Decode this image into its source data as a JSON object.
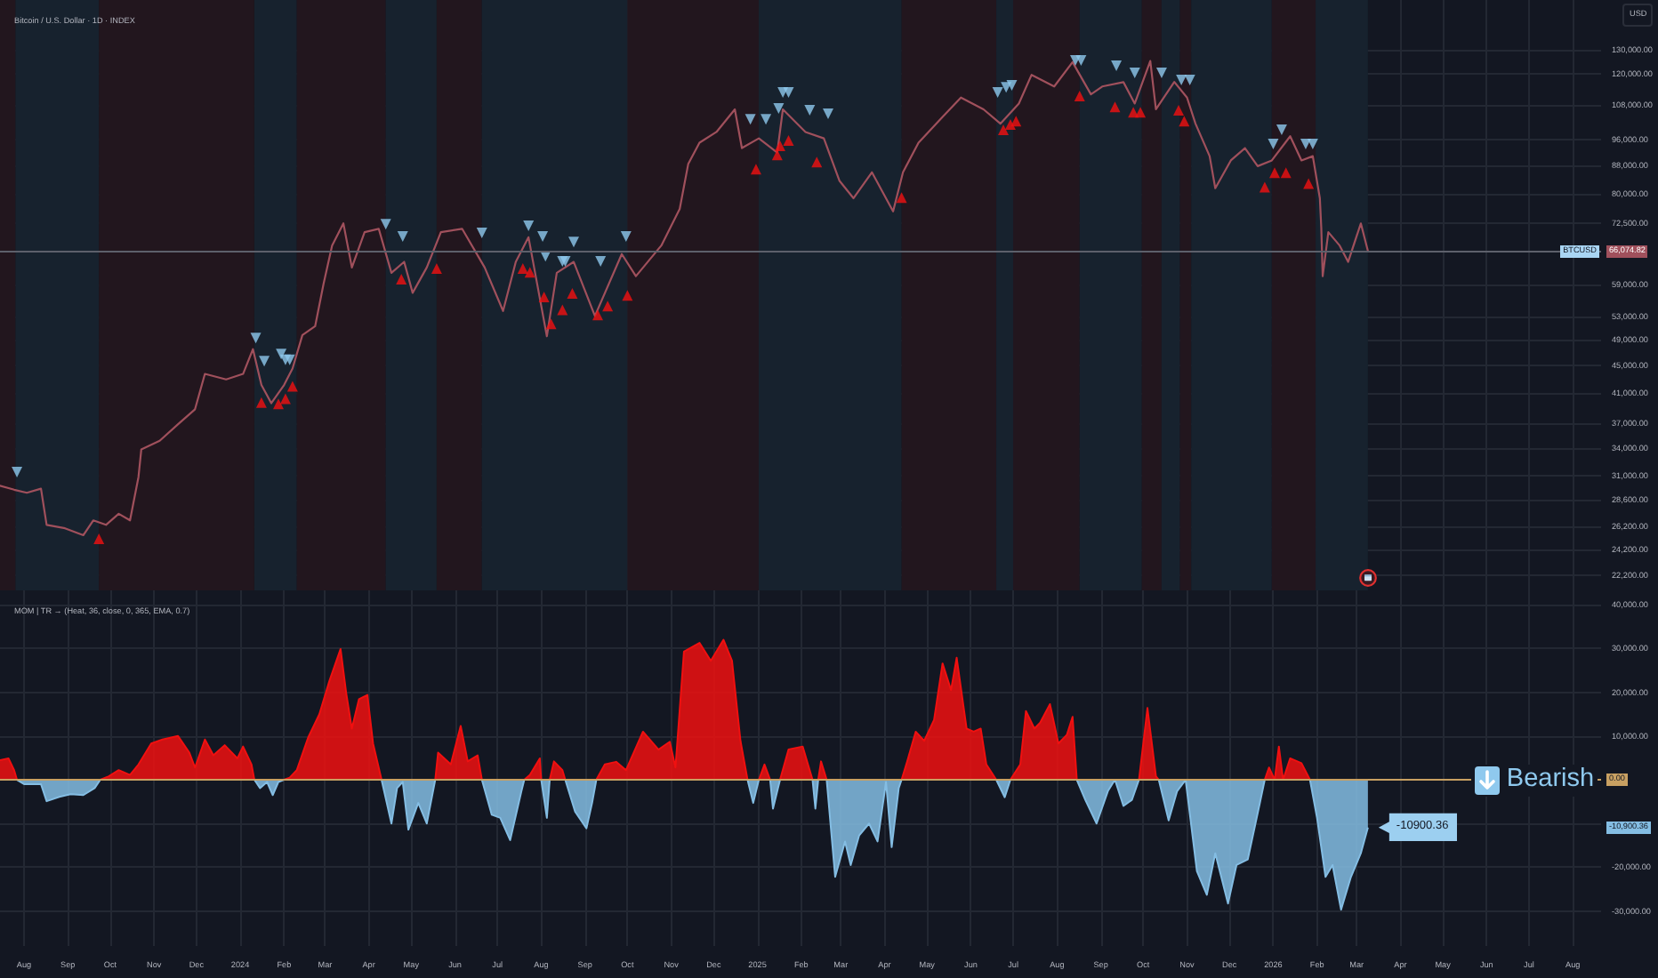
{
  "chart_data": [
    {
      "type": "line",
      "title": "Bitcoin / U.S. Dollar · 1D · INDEX",
      "ylabel": "USD",
      "log": true,
      "grid": true,
      "tick_labels": "y",
      "xlim": [
        "2023-07-15",
        "2026-08-21"
      ],
      "xticks": [
        {
          "value": "2023-08-01",
          "label": null
        },
        {
          "value": "2023-09-01",
          "label": null
        },
        {
          "value": "2023-10-01",
          "label": null
        },
        {
          "value": "2023-11-01",
          "label": null
        },
        {
          "value": "2023-12-01",
          "label": null
        },
        {
          "value": "2024-01-01",
          "label": null
        },
        {
          "value": "2024-02-01",
          "label": null
        },
        {
          "value": "2024-03-01",
          "label": null
        },
        {
          "value": "2024-04-01",
          "label": null
        },
        {
          "value": "2024-05-01",
          "label": null
        },
        {
          "value": "2024-06-01",
          "label": null
        },
        {
          "value": "2024-07-01",
          "label": null
        },
        {
          "value": "2024-08-01",
          "label": null
        },
        {
          "value": "2024-09-01",
          "label": null
        },
        {
          "value": "2024-10-01",
          "label": null
        },
        {
          "value": "2024-11-01",
          "label": null
        },
        {
          "value": "2024-12-01",
          "label": null
        },
        {
          "value": "2025-01-01",
          "label": null
        },
        {
          "value": "2025-02-01",
          "label": null
        },
        {
          "value": "2025-03-01",
          "label": null
        },
        {
          "value": "2025-04-01",
          "label": null
        },
        {
          "value": "2025-05-01",
          "label": null
        },
        {
          "value": "2025-06-01",
          "label": null
        },
        {
          "value": "2025-07-01",
          "label": null
        },
        {
          "value": "2025-08-01",
          "label": null
        },
        {
          "value": "2025-09-01",
          "label": null
        },
        {
          "value": "2025-10-01",
          "label": null
        },
        {
          "value": "2025-11-01",
          "label": null
        },
        {
          "value": "2025-12-01",
          "label": null
        },
        {
          "value": "2026-01-01",
          "label": null
        },
        {
          "value": "2026-02-01",
          "label": null
        },
        {
          "value": "2026-03-01",
          "label": null
        },
        {
          "value": "2026-04-01",
          "label": null
        },
        {
          "value": "2026-05-01",
          "label": null
        },
        {
          "value": "2026-06-01",
          "label": null
        },
        {
          "value": "2026-07-01",
          "label": null
        },
        {
          "value": "2026-08-01",
          "label": null
        }
      ],
      "ylim": [
        21100,
        153700
      ],
      "yticks": [
        {
          "value": 22200,
          "label": "22,200.00"
        },
        {
          "value": 24200,
          "label": "24,200.00"
        },
        {
          "value": 26200,
          "label": "26,200.00"
        },
        {
          "value": 28600,
          "label": "28,600.00"
        },
        {
          "value": 31000,
          "label": "31,000.00"
        },
        {
          "value": 34000,
          "label": "34,000.00"
        },
        {
          "value": 37000,
          "label": "37,000.00"
        },
        {
          "value": 41000,
          "label": "41,000.00"
        },
        {
          "value": 45000,
          "label": "45,000.00"
        },
        {
          "value": 49000,
          "label": "49,000.00"
        },
        {
          "value": 53000,
          "label": "53,000.00"
        },
        {
          "value": 59000,
          "label": "59,000.00"
        },
        {
          "value": 72500,
          "label": "72,500.00"
        },
        {
          "value": 80000,
          "label": "80,000.00"
        },
        {
          "value": 88000,
          "label": "88,000.00"
        },
        {
          "value": 96000,
          "label": "96,000.00"
        },
        {
          "value": 108000,
          "label": "108,000.00"
        },
        {
          "value": 120000,
          "label": "120,000.00"
        },
        {
          "value": 130000,
          "label": "130,000.00"
        }
      ],
      "x": [
        "2023-07-15",
        "2023-07-25",
        "2023-08-03",
        "2023-08-13",
        "2023-08-17",
        "2023-08-30",
        "2023-09-12",
        "2023-09-19",
        "2023-09-28",
        "2023-10-07",
        "2023-10-15",
        "2023-10-21",
        "2023-10-23",
        "2023-11-05",
        "2023-11-18",
        "2023-11-30",
        "2023-12-07",
        "2023-12-22",
        "2024-01-03",
        "2024-01-10",
        "2024-01-16",
        "2024-01-23",
        "2024-02-01",
        "2024-02-07",
        "2024-02-14",
        "2024-02-23",
        "2024-02-29",
        "2024-03-06",
        "2024-03-14",
        "2024-03-20",
        "2024-03-29",
        "2024-04-08",
        "2024-04-17",
        "2024-04-26",
        "2024-05-02",
        "2024-05-12",
        "2024-05-22",
        "2024-06-06",
        "2024-06-22",
        "2024-07-05",
        "2024-07-14",
        "2024-07-23",
        "2024-08-05",
        "2024-08-12",
        "2024-08-24",
        "2024-09-08",
        "2024-09-27",
        "2024-10-07",
        "2024-10-25",
        "2024-11-07",
        "2024-11-13",
        "2024-11-21",
        "2024-12-03",
        "2024-12-16",
        "2024-12-21",
        "2025-01-02",
        "2025-01-15",
        "2025-01-19",
        "2025-02-04",
        "2025-02-17",
        "2025-02-28",
        "2025-03-10",
        "2025-03-23",
        "2025-04-07",
        "2025-04-14",
        "2025-04-25",
        "2025-05-12",
        "2025-05-25",
        "2025-06-10",
        "2025-06-22",
        "2025-07-05",
        "2025-07-14",
        "2025-07-30",
        "2025-08-12",
        "2025-08-25",
        "2025-09-02",
        "2025-09-17",
        "2025-09-25",
        "2025-10-06",
        "2025-10-10",
        "2025-10-23",
        "2025-11-01",
        "2025-11-07",
        "2025-11-17",
        "2025-11-21",
        "2025-12-02",
        "2025-12-12",
        "2025-12-21",
        "2025-12-31",
        "2026-01-13",
        "2026-01-21",
        "2026-01-29",
        "2026-02-03",
        "2026-02-04",
        "2026-02-05",
        "2026-02-09",
        "2026-02-17",
        "2026-02-23",
        "2026-03-04",
        "2026-03-09"
      ],
      "series": [
        {
          "name": "BTCUSD",
          "color": "#a0505c",
          "marker": "none",
          "values": [
            30000,
            29600,
            29300,
            29700,
            26300,
            26000,
            25400,
            26700,
            26300,
            27300,
            26700,
            30900,
            33900,
            34900,
            36900,
            38800,
            43700,
            42900,
            43700,
            47500,
            42100,
            39600,
            42100,
            44500,
            49800,
            51300,
            59200,
            67300,
            72500,
            62500,
            70400,
            71200,
            61400,
            63700,
            57400,
            62500,
            70400,
            71200,
            62500,
            54000,
            63700,
            69200,
            49600,
            61400,
            63700,
            53100,
            65400,
            60700,
            67300,
            76100,
            88500,
            95100,
            98600,
            106400,
            93400,
            96500,
            92000,
            106400,
            98600,
            96500,
            83700,
            78900,
            86100,
            75500,
            86100,
            95100,
            103700,
            110700,
            106400,
            101400,
            108500,
            119500,
            114900,
            124700,
            111900,
            114900,
            116600,
            108500,
            125200,
            106400,
            116700,
            110700,
            101400,
            90900,
            81600,
            89600,
            93400,
            87900,
            89600,
            97200,
            89600,
            90900,
            78900,
            71500,
            60700,
            70400,
            67300,
            63700,
            72500,
            66074.82
          ]
        },
        {
          "type": "scatter",
          "color": "#8fc9ee",
          "marker": "triangle-down",
          "x": [
            "2023-07-27",
            "2024-01-12",
            "2024-01-18",
            "2024-01-30",
            "2024-02-02",
            "2024-02-05",
            "2024-04-13",
            "2024-04-25",
            "2024-06-20",
            "2024-07-23",
            "2024-08-02",
            "2024-08-04",
            "2024-08-16",
            "2024-08-18",
            "2024-08-24",
            "2024-09-12",
            "2024-09-30",
            "2024-12-27",
            "2025-01-07",
            "2025-01-16",
            "2025-01-19",
            "2025-01-23",
            "2025-02-07",
            "2025-02-20",
            "2025-06-20",
            "2025-06-26",
            "2025-06-30",
            "2025-08-14",
            "2025-08-18",
            "2025-09-12",
            "2025-09-25",
            "2025-10-14",
            "2025-10-28",
            "2025-11-03",
            "2026-01-01",
            "2026-01-07",
            "2026-01-24",
            "2026-01-29"
          ],
          "values": [
            31400,
            49300,
            45600,
            46700,
            45800,
            45800,
            72300,
            69400,
            70200,
            71900,
            69400,
            64900,
            63800,
            63800,
            68100,
            63800,
            69400,
            102900,
            102900,
            106700,
            112600,
            112600,
            106100,
            104800,
            112600,
            114600,
            115300,
            125400,
            125400,
            123200,
            120300,
            120300,
            117400,
            117400,
            94700,
            99300,
            94700,
            94700
          ]
        },
        {
          "type": "scatter",
          "color": "#f21010",
          "marker": "triangle",
          "x": [
            "2023-09-23",
            "2024-01-16",
            "2024-01-28",
            "2024-02-02",
            "2024-02-07",
            "2024-04-24",
            "2024-05-19",
            "2024-07-19",
            "2024-07-24",
            "2024-08-03",
            "2024-08-08",
            "2024-08-16",
            "2024-08-23",
            "2024-09-10",
            "2024-09-17",
            "2024-10-01",
            "2024-12-31",
            "2025-01-15",
            "2025-01-17",
            "2025-01-23",
            "2025-02-12",
            "2025-04-13",
            "2025-06-24",
            "2025-06-29",
            "2025-07-03",
            "2025-08-17",
            "2025-09-11",
            "2025-09-24",
            "2025-09-29",
            "2025-10-26",
            "2025-10-30",
            "2025-12-26",
            "2026-01-02",
            "2026-01-10",
            "2026-01-26"
          ],
          "values": [
            25100,
            39700,
            39500,
            40200,
            41900,
            60100,
            62300,
            62300,
            61500,
            56600,
            51700,
            54200,
            57300,
            53300,
            54900,
            56900,
            87000,
            91300,
            94100,
            95800,
            89100,
            79100,
            99300,
            101100,
            102300,
            111300,
            107300,
            105400,
            105400,
            106100,
            102300,
            81900,
            86000,
            86000,
            82900
          ]
        }
      ],
      "ref_lines": [
        {
          "axis": "y",
          "value": 66074.82
        }
      ],
      "bands": [
        {
          "axis": "x",
          "from": "2023-07-15",
          "to": "2023-07-26",
          "color": "#22161e"
        },
        {
          "axis": "x",
          "from": "2023-07-26",
          "to": "2023-09-23",
          "color": "#17222e"
        },
        {
          "axis": "x",
          "from": "2023-09-23",
          "to": "2024-01-11",
          "color": "#22161e"
        },
        {
          "axis": "x",
          "from": "2024-01-11",
          "to": "2024-02-10",
          "color": "#17222e"
        },
        {
          "axis": "x",
          "from": "2024-02-10",
          "to": "2024-04-13",
          "color": "#22161e"
        },
        {
          "axis": "x",
          "from": "2024-04-13",
          "to": "2024-05-19",
          "color": "#17222e"
        },
        {
          "axis": "x",
          "from": "2024-05-19",
          "to": "2024-06-20",
          "color": "#22161e"
        },
        {
          "axis": "x",
          "from": "2024-06-20",
          "to": "2024-10-01",
          "color": "#17222e"
        },
        {
          "axis": "x",
          "from": "2024-10-01",
          "to": "2025-01-02",
          "color": "#22161e"
        },
        {
          "axis": "x",
          "from": "2025-01-02",
          "to": "2025-04-13",
          "color": "#17222e"
        },
        {
          "axis": "x",
          "from": "2025-04-13",
          "to": "2025-06-19",
          "color": "#22161e"
        },
        {
          "axis": "x",
          "from": "2025-06-19",
          "to": "2025-07-01",
          "color": "#17222e"
        },
        {
          "axis": "x",
          "from": "2025-07-01",
          "to": "2025-08-17",
          "color": "#22161e"
        },
        {
          "axis": "x",
          "from": "2025-08-17",
          "to": "2025-09-30",
          "color": "#17222e"
        },
        {
          "axis": "x",
          "from": "2025-09-30",
          "to": "2025-10-14",
          "color": "#22161e"
        },
        {
          "axis": "x",
          "from": "2025-10-14",
          "to": "2025-10-27",
          "color": "#17222e"
        },
        {
          "axis": "x",
          "from": "2025-10-27",
          "to": "2025-11-04",
          "color": "#22161e"
        },
        {
          "axis": "x",
          "from": "2025-11-04",
          "to": "2025-12-31",
          "color": "#17222e"
        },
        {
          "axis": "x",
          "from": "2025-12-31",
          "to": "2026-01-31",
          "color": "#22161e"
        },
        {
          "axis": "x",
          "from": "2026-01-31",
          "to": "2026-03-09",
          "color": "#17222e"
        }
      ],
      "annotations": [
        "66,074.82"
      ]
    },
    {
      "type": "area",
      "title": "MOM | TR → (Heat, 36, close, 0, 365, EMA, 0.7)",
      "grid": true,
      "xlim": [
        "2023-07-15",
        "2026-08-21"
      ],
      "xticks": [
        {
          "value": "2023-08-01",
          "label": "Aug"
        },
        {
          "value": "2023-09-01",
          "label": "Sep"
        },
        {
          "value": "2023-10-01",
          "label": "Oct"
        },
        {
          "value": "2023-11-01",
          "label": "Nov"
        },
        {
          "value": "2023-12-01",
          "label": "Dec"
        },
        {
          "value": "2024-01-01",
          "label": "2024"
        },
        {
          "value": "2024-02-01",
          "label": "Feb"
        },
        {
          "value": "2024-03-01",
          "label": "Mar"
        },
        {
          "value": "2024-04-01",
          "label": "Apr"
        },
        {
          "value": "2024-05-01",
          "label": "May"
        },
        {
          "value": "2024-06-01",
          "label": "Jun"
        },
        {
          "value": "2024-07-01",
          "label": "Jul"
        },
        {
          "value": "2024-08-01",
          "label": "Aug"
        },
        {
          "value": "2024-09-01",
          "label": "Sep"
        },
        {
          "value": "2024-10-01",
          "label": "Oct"
        },
        {
          "value": "2024-11-01",
          "label": "Nov"
        },
        {
          "value": "2024-12-01",
          "label": "Dec"
        },
        {
          "value": "2025-01-01",
          "label": "2025"
        },
        {
          "value": "2025-02-01",
          "label": "Feb"
        },
        {
          "value": "2025-03-01",
          "label": "Mar"
        },
        {
          "value": "2025-04-01",
          "label": "Apr"
        },
        {
          "value": "2025-05-01",
          "label": "May"
        },
        {
          "value": "2025-06-01",
          "label": "Jun"
        },
        {
          "value": "2025-07-01",
          "label": "Jul"
        },
        {
          "value": "2025-08-01",
          "label": "Aug"
        },
        {
          "value": "2025-09-01",
          "label": "Sep"
        },
        {
          "value": "2025-10-01",
          "label": "Oct"
        },
        {
          "value": "2025-11-01",
          "label": "Nov"
        },
        {
          "value": "2025-12-01",
          "label": "Dec"
        },
        {
          "value": "2026-01-01",
          "label": "2026"
        },
        {
          "value": "2026-02-01",
          "label": "Feb"
        },
        {
          "value": "2026-03-01",
          "label": "Mar"
        },
        {
          "value": "2026-04-01",
          "label": "Apr"
        },
        {
          "value": "2026-05-01",
          "label": "May"
        },
        {
          "value": "2026-06-01",
          "label": "Jun"
        },
        {
          "value": "2026-07-01",
          "label": "Jul"
        },
        {
          "value": "2026-08-01",
          "label": "Aug"
        }
      ],
      "ylim": [
        -38000,
        43300
      ],
      "yticks": [
        {
          "value": 40000,
          "label": "40,000.00"
        },
        {
          "value": 30000,
          "label": "30,000.00"
        },
        {
          "value": 20000,
          "label": "20,000.00"
        },
        {
          "value": 10000,
          "label": "10,000.00"
        },
        {
          "value": 0,
          "label": null
        },
        {
          "value": -10000,
          "label": null
        },
        {
          "value": -20000,
          "label": "-20,000.00"
        },
        {
          "value": -30000,
          "label": "-30,000.00"
        }
      ],
      "x": [
        "2023-07-15",
        "2023-07-21",
        "2023-07-25",
        "2023-07-27",
        "2023-08-01",
        "2023-08-13",
        "2023-08-17",
        "2023-08-26",
        "2023-09-03",
        "2023-09-12",
        "2023-09-20",
        "2023-09-24",
        "2023-09-30",
        "2023-10-07",
        "2023-10-15",
        "2023-10-21",
        "2023-10-30",
        "2023-11-07",
        "2023-11-18",
        "2023-11-26",
        "2023-11-30",
        "2023-12-07",
        "2023-12-13",
        "2023-12-21",
        "2023-12-30",
        "2024-01-03",
        "2024-01-09",
        "2024-01-11",
        "2024-01-15",
        "2024-01-20",
        "2024-01-24",
        "2024-01-28",
        "2024-02-01",
        "2024-02-05",
        "2024-02-10",
        "2024-02-18",
        "2024-02-26",
        "2024-03-04",
        "2024-03-12",
        "2024-03-16",
        "2024-03-20",
        "2024-03-25",
        "2024-03-31",
        "2024-04-04",
        "2024-04-10",
        "2024-04-17",
        "2024-04-21",
        "2024-04-25",
        "2024-04-29",
        "2024-05-06",
        "2024-05-12",
        "2024-05-18",
        "2024-05-20",
        "2024-05-29",
        "2024-06-05",
        "2024-06-10",
        "2024-06-17",
        "2024-06-20",
        "2024-06-27",
        "2024-07-03",
        "2024-07-10",
        "2024-07-18",
        "2024-07-20",
        "2024-07-24",
        "2024-07-31",
        "2024-08-01",
        "2024-08-05",
        "2024-08-07",
        "2024-08-10",
        "2024-08-16",
        "2024-08-18",
        "2024-08-25",
        "2024-09-02",
        "2024-09-06",
        "2024-09-09",
        "2024-09-15",
        "2024-09-23",
        "2024-09-30",
        "2024-10-12",
        "2024-10-23",
        "2024-10-31",
        "2024-11-04",
        "2024-11-10",
        "2024-11-21",
        "2024-11-29",
        "2024-12-08",
        "2024-12-14",
        "2024-12-20",
        "2024-12-25",
        "2024-12-29",
        "2025-01-02",
        "2025-01-06",
        "2025-01-10",
        "2025-01-12",
        "2025-01-17",
        "2025-01-23",
        "2025-02-02",
        "2025-02-09",
        "2025-02-11",
        "2025-02-13",
        "2025-02-15",
        "2025-02-19",
        "2025-02-25",
        "2025-03-04",
        "2025-03-08",
        "2025-03-14",
        "2025-03-21",
        "2025-03-27",
        "2025-04-02",
        "2025-04-06",
        "2025-04-11",
        "2025-04-13",
        "2025-04-17",
        "2025-04-23",
        "2025-04-29",
        "2025-05-06",
        "2025-05-12",
        "2025-05-18",
        "2025-05-22",
        "2025-05-29",
        "2025-06-03",
        "2025-06-08",
        "2025-06-12",
        "2025-06-19",
        "2025-06-25",
        "2025-06-29",
        "2025-07-06",
        "2025-07-10",
        "2025-07-16",
        "2025-07-20",
        "2025-07-27",
        "2025-08-02",
        "2025-08-08",
        "2025-08-12",
        "2025-08-15",
        "2025-08-21",
        "2025-08-29",
        "2025-09-06",
        "2025-09-11",
        "2025-09-17",
        "2025-09-23",
        "2025-09-28",
        "2025-10-04",
        "2025-10-10",
        "2025-10-12",
        "2025-10-19",
        "2025-10-25",
        "2025-10-31",
        "2025-11-08",
        "2025-11-15",
        "2025-11-21",
        "2025-11-30",
        "2025-12-06",
        "2025-12-14",
        "2025-12-23",
        "2025-12-26",
        "2025-12-29",
        "2026-01-02",
        "2026-01-05",
        "2026-01-08",
        "2026-01-13",
        "2026-01-21",
        "2026-01-27",
        "2026-02-01",
        "2026-02-07",
        "2026-02-12",
        "2026-02-18",
        "2026-02-25",
        "2026-03-04",
        "2026-03-09"
      ],
      "series": [
        {
          "color": "#f01010",
          "values": [
            4500,
            4900,
            2200,
            0,
            null,
            null,
            null,
            null,
            null,
            null,
            null,
            0,
            800,
            2200,
            1100,
            3500,
            8300,
            9200,
            10000,
            6200,
            2800,
            9200,
            5600,
            7900,
            4900,
            7600,
            3500,
            0,
            null,
            null,
            null,
            null,
            0,
            500,
            2200,
            9600,
            15000,
            22500,
            29900,
            19800,
            11700,
            18400,
            19400,
            8300,
            0,
            null,
            null,
            null,
            null,
            null,
            null,
            0,
            6200,
            3500,
            12300,
            4200,
            5600,
            0,
            null,
            null,
            null,
            null,
            0,
            1100,
            4900,
            0,
            null,
            0,
            4200,
            2200,
            0,
            null,
            null,
            null,
            0,
            3500,
            4100,
            2200,
            11000,
            6900,
            8700,
            2800,
            29300,
            31300,
            27200,
            32000,
            27200,
            8900,
            0,
            null,
            0,
            3500,
            0,
            null,
            0,
            6900,
            7600,
            0,
            null,
            0,
            4200,
            0,
            null,
            null,
            null,
            null,
            null,
            null,
            null,
            null,
            null,
            0,
            4200,
            11000,
            8900,
            13700,
            26600,
            20500,
            27900,
            11700,
            11000,
            11700,
            3500,
            0,
            null,
            0,
            3500,
            15700,
            11700,
            13000,
            17300,
            8300,
            10300,
            14400,
            0,
            null,
            null,
            null,
            null,
            null,
            null,
            0,
            16400,
            800,
            0,
            null,
            null,
            null,
            null,
            null,
            null,
            null,
            null,
            null,
            null,
            0,
            2800,
            0,
            7600,
            0,
            4900,
            3800,
            0,
            null,
            null,
            null,
            null,
            null,
            null,
            null
          ]
        },
        {
          "color": "#84bde3",
          "values": [
            null,
            null,
            null,
            0,
            -1000,
            -1000,
            -4900,
            -3900,
            -3300,
            -3500,
            -1900,
            0,
            null,
            null,
            null,
            null,
            null,
            null,
            null,
            null,
            null,
            null,
            null,
            null,
            null,
            null,
            null,
            0,
            -1900,
            -500,
            -3500,
            -500,
            0,
            null,
            null,
            null,
            null,
            null,
            null,
            null,
            null,
            null,
            null,
            null,
            0,
            -10000,
            -1900,
            -500,
            -11400,
            -5300,
            -10000,
            0,
            null,
            null,
            null,
            null,
            null,
            0,
            -8000,
            -8700,
            -13800,
            -2600,
            0,
            null,
            null,
            0,
            -8700,
            0,
            null,
            null,
            0,
            -7300,
            -11100,
            -5300,
            0,
            null,
            null,
            null,
            null,
            null,
            null,
            null,
            null,
            null,
            null,
            null,
            null,
            null,
            0,
            -5300,
            0,
            null,
            0,
            -6600,
            0,
            null,
            null,
            0,
            -6600,
            0,
            null,
            0,
            -22200,
            -14100,
            -19500,
            -12700,
            -10000,
            -14100,
            -500,
            -15400,
            -1900,
            0,
            null,
            null,
            null,
            null,
            null,
            null,
            null,
            null,
            null,
            null,
            null,
            0,
            -4000,
            0,
            null,
            null,
            null,
            null,
            null,
            null,
            null,
            null,
            0,
            -4600,
            -10000,
            -2600,
            0,
            -6000,
            -4600,
            0,
            null,
            null,
            0,
            -9300,
            -2600,
            0,
            -20900,
            -26300,
            -16800,
            -28300,
            -19500,
            -18200,
            -4600,
            0,
            null,
            null,
            null,
            null,
            null,
            null,
            0,
            -8700,
            -22200,
            -19500,
            -29700,
            -22200,
            -16800,
            -10900.36
          ]
        }
      ],
      "ref_lines": [
        {
          "axis": "y",
          "value": 0,
          "color": "#c8a062",
          "label": "0.00"
        }
      ],
      "annotations": [
        "Bearish",
        {
          "text": "-10900.36",
          "x": "2026-03-09",
          "y": -10900.36
        },
        "-10,900.36"
      ]
    }
  ]
}
